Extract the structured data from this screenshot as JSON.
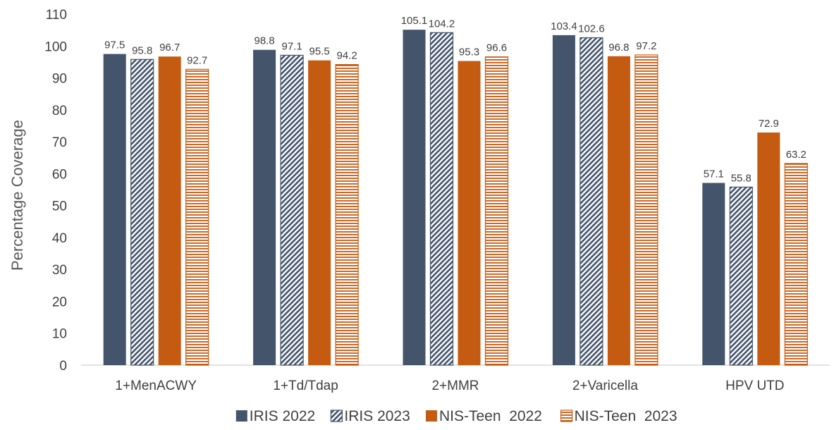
{
  "chart_data": {
    "type": "bar",
    "title": "",
    "xlabel": "",
    "ylabel": "Percentage  Coverage",
    "ylim": [
      0,
      110
    ],
    "yticks": [
      0,
      10,
      20,
      30,
      40,
      50,
      60,
      70,
      80,
      90,
      100,
      110
    ],
    "grid": false,
    "legend_position": "bottom",
    "categories": [
      "1+MenACWY",
      "1+Td/Tdap",
      "2+MMR",
      "2+Varicella",
      "HPV UTD"
    ],
    "series": [
      {
        "name": "IRIS 2022",
        "values": [
          97.5,
          98.8,
          105.1,
          103.4,
          57.1
        ],
        "color": "#44546a",
        "pattern": "solid"
      },
      {
        "name": "IRIS 2023",
        "values": [
          95.8,
          97.1,
          104.2,
          102.6,
          55.8
        ],
        "color": "#44546a",
        "pattern": "diagonal-hatch"
      },
      {
        "name": "NIS-Teen  2022",
        "values": [
          96.7,
          95.5,
          95.3,
          96.8,
          72.9
        ],
        "color": "#c55a11",
        "pattern": "solid"
      },
      {
        "name": "NIS-Teen  2023",
        "values": [
          92.7,
          94.2,
          96.6,
          97.2,
          63.2
        ],
        "color": "#c55a11",
        "pattern": "horizontal-lines"
      }
    ]
  }
}
